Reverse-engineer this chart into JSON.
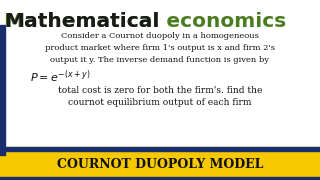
{
  "bg_color": "#ffffff",
  "title_mathematical": "Mathematical",
  "title_economics": " economics",
  "title_mathematical_color": "#1a1a1a",
  "title_economics_color": "#4a7c1f",
  "title_fontsize": 14.5,
  "body_text_lines": [
    "Consider a Cournot duopoly in a homogeneous",
    "product market where firm 1's output is x and firm 2's",
    "output it y. The inverse demand function is given by"
  ],
  "formula": "$P = e^{-(x+y)}$",
  "body_text_lines2": [
    "total cost is zero for both the firm's. find the",
    "cournot equilibrium output of each firm"
  ],
  "footer_text": "COURNOT DUOPOLY MODEL",
  "footer_bg": "#f5c800",
  "footer_text_color": "#111111",
  "footer_border_color": "#1a2e6e",
  "left_border_color": "#1a2e6e",
  "body_fontsize": 6.0,
  "formula_fontsize": 8.0,
  "footer_fontsize": 9.0
}
